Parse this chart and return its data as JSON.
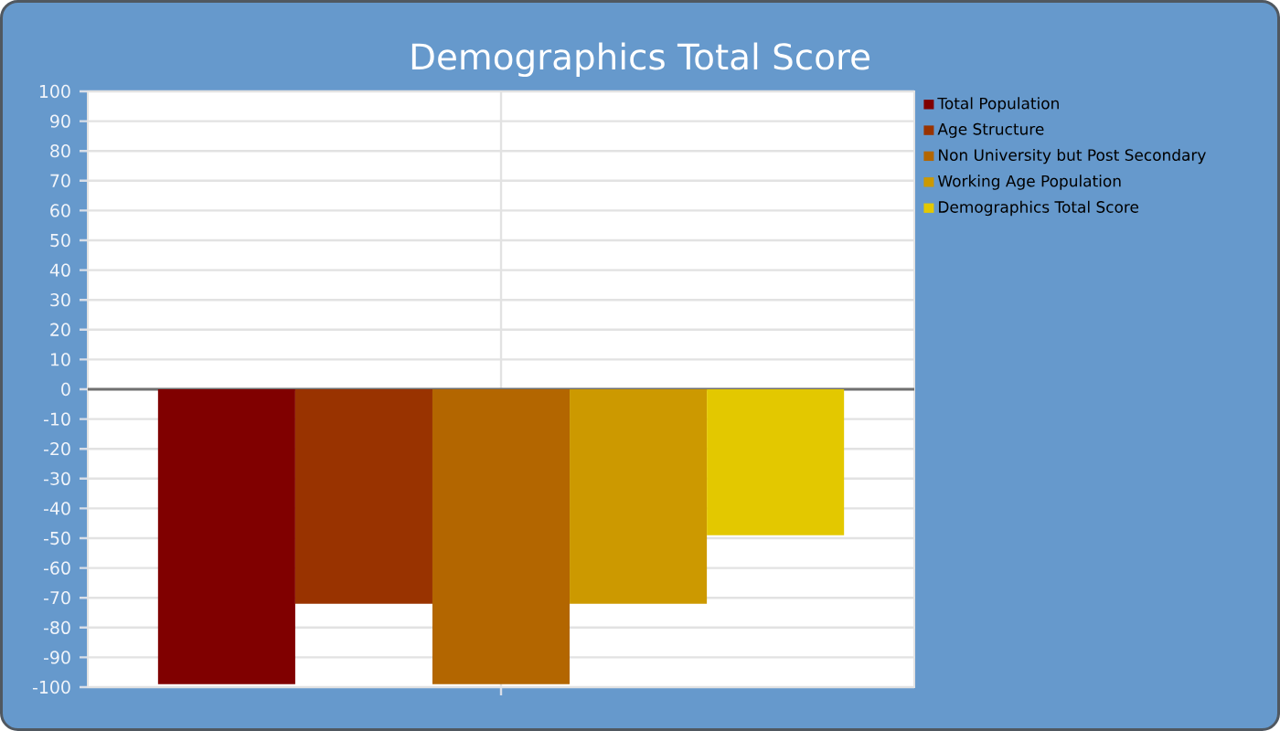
{
  "chart_data": {
    "type": "bar",
    "title": "Demographics Total Score",
    "categories": [
      null
    ],
    "series": [
      {
        "name": "Total Population",
        "color": "#800000",
        "values": [
          -99
        ]
      },
      {
        "name": "Age Structure",
        "color": "#993300",
        "values": [
          -72
        ]
      },
      {
        "name": "Non University but Post Secondary",
        "color": "#B36600",
        "values": [
          -99
        ]
      },
      {
        "name": "Working Age Population",
        "color": "#CC9900",
        "values": [
          -72
        ]
      },
      {
        "name": "Demographics Total Score",
        "color": "#E3C800",
        "values": [
          -49
        ]
      }
    ],
    "ylim": [
      -100,
      100
    ],
    "yticks": [
      -100,
      -90,
      -80,
      -70,
      -60,
      -50,
      -40,
      -30,
      -20,
      -10,
      0,
      10,
      20,
      30,
      40,
      50,
      60,
      70,
      80,
      90,
      100
    ],
    "grid": true,
    "legend": "right",
    "ref_lines": [
      {
        "axis": "y",
        "value": 0,
        "color": "#707070"
      }
    ]
  }
}
